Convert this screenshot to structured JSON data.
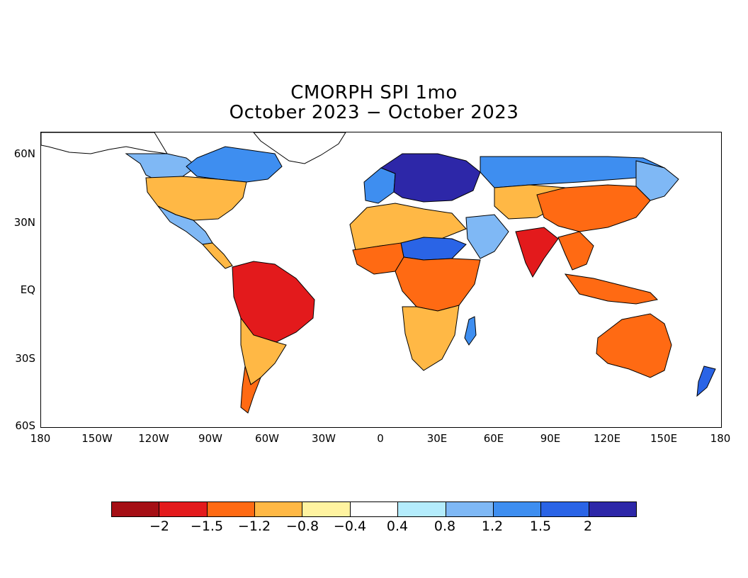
{
  "title": "CMORPH SPI 1mo",
  "subtitle": "October 2023 - October 2023",
  "axes": {
    "lat_labels": [
      "60N",
      "30N",
      "EQ",
      "30S",
      "60S"
    ],
    "lon_labels": [
      "180",
      "150W",
      "120W",
      "90W",
      "60W",
      "30W",
      "0",
      "30E",
      "60E",
      "90E",
      "120E",
      "150E",
      "180"
    ]
  },
  "colorbar": {
    "colors": [
      "#a50f15",
      "#e31a1c",
      "#ff6a13",
      "#ffb845",
      "#fff3a0",
      "#ffffff",
      "#b4ecfc",
      "#7fb8f5",
      "#3e8ef0",
      "#2a64e6",
      "#2d27a8"
    ],
    "labels": [
      "-2",
      "-1.5",
      "-1.2",
      "-0.8",
      "-0.4",
      "0.4",
      "0.8",
      "1.2",
      "1.5",
      "2"
    ]
  },
  "regions": [
    {
      "name": "Alaska-Canada",
      "color": "#ffffff"
    },
    {
      "name": "Western-Canada",
      "color": "#7fb8f5"
    },
    {
      "name": "Eastern-Canada",
      "color": "#3e8ef0"
    },
    {
      "name": "USA",
      "color": "#ffb845"
    },
    {
      "name": "Mexico",
      "color": "#7fb8f5"
    },
    {
      "name": "Central-America",
      "color": "#ffb845"
    },
    {
      "name": "Greenland",
      "color": "#ffffff"
    },
    {
      "name": "Brazil",
      "color": "#e31a1c"
    },
    {
      "name": "Southern-South-America",
      "color": "#ffb845"
    },
    {
      "name": "Patagonia",
      "color": "#ff6a13"
    },
    {
      "name": "Europe",
      "color": "#2d27a8"
    },
    {
      "name": "Western-Europe",
      "color": "#3e8ef0"
    },
    {
      "name": "North-Africa",
      "color": "#ffb845"
    },
    {
      "name": "Sahel",
      "color": "#2a64e6"
    },
    {
      "name": "West-Africa",
      "color": "#ff6a13"
    },
    {
      "name": "Central-Africa",
      "color": "#ff6a13"
    },
    {
      "name": "Southern-Africa",
      "color": "#ffb845"
    },
    {
      "name": "Madagascar",
      "color": "#3e8ef0"
    },
    {
      "name": "Arabia",
      "color": "#7fb8f5"
    },
    {
      "name": "Russia",
      "color": "#3e8ef0"
    },
    {
      "name": "Central-Asia",
      "color": "#ffb845"
    },
    {
      "name": "India",
      "color": "#e31a1c"
    },
    {
      "name": "China",
      "color": "#ff6a13"
    },
    {
      "name": "East-Asia",
      "color": "#7fb8f5"
    },
    {
      "name": "Southeast-Asia",
      "color": "#ff6a13"
    },
    {
      "name": "Indonesia",
      "color": "#ff6a13"
    },
    {
      "name": "Australia",
      "color": "#ff6a13"
    },
    {
      "name": "New-Zealand",
      "color": "#2a64e6"
    }
  ]
}
